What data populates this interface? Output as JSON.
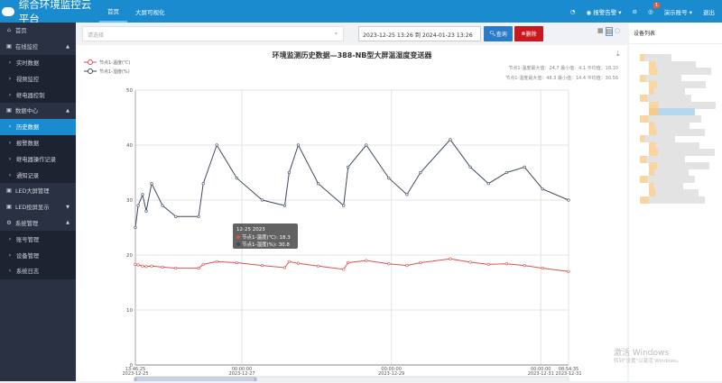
{
  "header": {
    "title": "综合环境监控云平台",
    "nav": [
      "首页",
      "大屏可视化"
    ],
    "alarm": "报警告警",
    "notify_count": "1",
    "account": "演示账号",
    "logout": "退出"
  },
  "sidebar": [
    {
      "label": "首页",
      "icon": "home-icon",
      "type": "top"
    },
    {
      "label": "在线监控",
      "icon": "monitor-icon",
      "type": "group",
      "arrow": "▲"
    },
    {
      "label": "实时数据",
      "type": "sub"
    },
    {
      "label": "视频监控",
      "type": "sub"
    },
    {
      "label": "继电器控制",
      "type": "sub"
    },
    {
      "label": "数据中心",
      "icon": "database-icon",
      "type": "group",
      "arrow": "▲"
    },
    {
      "label": "历史数据",
      "type": "sub",
      "active": true
    },
    {
      "label": "报警数据",
      "type": "sub"
    },
    {
      "label": "继电器操作记录",
      "type": "sub"
    },
    {
      "label": "通知记录",
      "type": "sub"
    },
    {
      "label": "LED大屏管理",
      "icon": "led-icon",
      "type": "top"
    },
    {
      "label": "LED投屏显示",
      "icon": "screen-icon",
      "type": "group",
      "arrow": "▼"
    },
    {
      "label": "系统管理",
      "icon": "gear-icon",
      "type": "group",
      "arrow": "▲"
    },
    {
      "label": "账号管理",
      "type": "sub"
    },
    {
      "label": "设备管理",
      "type": "sub"
    },
    {
      "label": "系统日志",
      "type": "sub"
    }
  ],
  "filter": {
    "placeholder": "请选择",
    "date_range": "2023-12-25 13:26 到 2024-01-23 13:26",
    "query": "查询",
    "delete": "删除"
  },
  "right_panel": {
    "title": "设备列表"
  },
  "watermark": {
    "line1": "激活 Windows",
    "line2": "转到\"设置\"以激活 Windows。"
  },
  "colors": {
    "header": "#1b8bd0",
    "temp": "#d9534f",
    "humidity": "#3d4a5c",
    "delete": "#c9181f",
    "query": "#2a7cc7"
  },
  "chart_data": {
    "type": "line",
    "title": "环境监测历史数据—388-NB型大屏温湿度变送器",
    "ylim": [
      0,
      50
    ],
    "yticks": [
      0,
      10,
      20,
      30,
      40,
      50
    ],
    "xlim": [
      "2023-12-25 13:46:25",
      "2023-12-31 08:54:35"
    ],
    "xticks": [
      {
        "t": "13:46:25",
        "d": "2023-12-25",
        "at": "2023-12-25 13:46:25"
      },
      {
        "t": "00:00:00",
        "d": "2023-12-27",
        "at": "2023-12-27 00:00:00"
      },
      {
        "t": "00:00:00",
        "d": "2023-12-29",
        "at": "2023-12-29 00:00:00"
      },
      {
        "t": "00:00:00",
        "d": "2023-12-31",
        "at": "2023-12-31 00:00:00"
      },
      {
        "t": "08:54:35",
        "d": "2023-12-31",
        "at": "2023-12-31 08:54:35"
      }
    ],
    "grid": true,
    "legend_position": "top-left",
    "stats": [
      "节点1-温度最大值：24.7  最小值：4.1  平均值：18.10",
      "节点1-湿度最大值：48.3  最小值：14.4  平均值：30.56"
    ],
    "tooltip": {
      "title": "12-25 2023",
      "rows": [
        "节点1-温度(℃): 18.3",
        "节点1-湿度(%): 30.8"
      ]
    },
    "x": [
      "2023-12-25 13:46",
      "2023-12-25 14:40",
      "2023-12-25 16:05",
      "2023-12-25 17:15",
      "2023-12-25 19:00",
      "2023-12-25 22:30",
      "2023-12-26 02:45",
      "2023-12-26 10:05",
      "2023-12-26 11:35",
      "2023-12-26 15:55",
      "2023-12-26 22:20",
      "2023-12-27 06:30",
      "2023-12-27 13:45",
      "2023-12-27 15:10",
      "2023-12-27 18:05",
      "2023-12-28 00:30",
      "2023-12-28 08:40",
      "2023-12-28 10:05",
      "2023-12-28 15:55",
      "2023-12-28 23:10",
      "2023-12-29 05:00",
      "2023-12-29 09:20",
      "2023-12-29 18:55",
      "2023-12-30 01:20",
      "2023-12-30 07:10",
      "2023-12-30 13:00",
      "2023-12-30 18:45",
      "2023-12-31 00:35",
      "2023-12-31 08:54"
    ],
    "series": [
      {
        "name": "节点1-温度(℃)",
        "color": "#d9534f",
        "values": [
          18.3,
          18.2,
          18.0,
          17.9,
          18.0,
          17.8,
          17.6,
          17.6,
          18.3,
          18.8,
          18.6,
          18.1,
          17.7,
          18.8,
          18.5,
          18.0,
          17.4,
          18.6,
          19.0,
          18.4,
          18.1,
          18.6,
          19.3,
          18.7,
          18.3,
          18.4,
          18.1,
          17.6,
          17.0
        ]
      },
      {
        "name": "节点1-湿度(%)",
        "color": "#3d4a5c",
        "values": [
          25,
          29,
          31,
          28,
          33,
          29,
          27,
          27,
          33,
          40,
          34,
          30,
          29,
          35,
          40,
          33,
          29,
          36,
          40,
          34,
          31,
          35,
          41,
          36,
          33,
          35,
          36,
          32,
          30
        ]
      }
    ]
  }
}
